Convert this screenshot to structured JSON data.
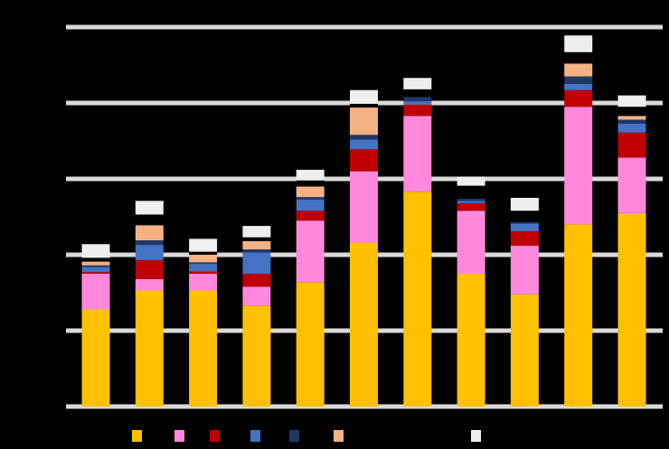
{
  "chart_data": {
    "type": "bar",
    "stacked": true,
    "title": "",
    "xlabel": "",
    "ylabel": "",
    "ylim": [
      0,
      500
    ],
    "grid": true,
    "legend_position": "bottom",
    "categories": [
      "",
      "",
      "",
      "",
      "",
      "",
      "",
      "",
      "",
      "",
      ""
    ],
    "series": [
      {
        "color": "#FFC000",
        "values": [
          128,
          153,
          153,
          133,
          164,
          216,
          283,
          175,
          148,
          240,
          255
        ]
      },
      {
        "color": "#FF88DD",
        "values": [
          47,
          15,
          22,
          25,
          81,
          94,
          100,
          83,
          64,
          155,
          73
        ]
      },
      {
        "color": "#C00000",
        "values": [
          2,
          25,
          3,
          17,
          13,
          29,
          15,
          10,
          19,
          22,
          33
        ]
      },
      {
        "color": "#4472C4",
        "values": [
          7,
          20,
          10,
          28,
          15,
          13,
          4,
          3,
          10,
          8,
          12
        ]
      },
      {
        "color": "#1F3864",
        "values": [
          2,
          6,
          2,
          4,
          3,
          6,
          6,
          3,
          2,
          10,
          5
        ]
      },
      {
        "color": "#F4B183",
        "values": [
          5,
          20,
          10,
          11,
          14,
          36,
          0,
          0,
          0,
          17,
          5
        ]
      },
      {
        "color": "#000000",
        "values": [
          5,
          14,
          4,
          5,
          8,
          5,
          10,
          17,
          15,
          15,
          12
        ]
      },
      {
        "color": "#EEEEEE",
        "values": [
          18,
          18,
          17,
          15,
          14,
          18,
          15,
          12,
          17,
          22,
          15
        ]
      }
    ]
  }
}
